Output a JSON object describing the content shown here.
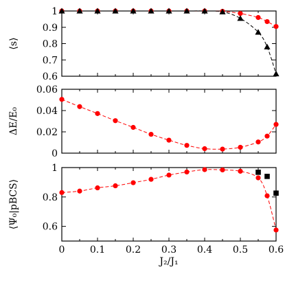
{
  "chart_data": [
    {
      "type": "scatter",
      "ylabel": "⟨s⟩",
      "xlim": [
        0,
        0.6
      ],
      "ylim": [
        0.6,
        1.0
      ],
      "yticks": [
        "0.6",
        "0.7",
        "0.8",
        "0.9",
        "1"
      ],
      "grid": false,
      "series": [
        {
          "marker": "circle",
          "color": "#ff0000",
          "line": "dashed",
          "x": [
            0,
            0.05,
            0.1,
            0.15,
            0.2,
            0.25,
            0.3,
            0.35,
            0.4,
            0.45,
            0.5,
            0.55,
            0.575,
            0.6
          ],
          "y": [
            1.0,
            1.0,
            1.0,
            1.0,
            1.0,
            1.0,
            1.0,
            1.0,
            1.0,
            0.998,
            0.985,
            0.96,
            0.935,
            0.905
          ]
        },
        {
          "marker": "triangle",
          "color": "#000000",
          "line": "dashed",
          "x": [
            0,
            0.05,
            0.1,
            0.15,
            0.2,
            0.25,
            0.3,
            0.35,
            0.4,
            0.45,
            0.5,
            0.55,
            0.575,
            0.6
          ],
          "y": [
            1.0,
            1.0,
            1.0,
            1.0,
            1.0,
            1.0,
            1.0,
            1.0,
            1.0,
            0.995,
            0.955,
            0.87,
            0.78,
            0.615
          ]
        }
      ]
    },
    {
      "type": "scatter",
      "ylabel": "ΔE/E₀",
      "xlim": [
        0,
        0.6
      ],
      "ylim": [
        0,
        0.06
      ],
      "yticks": [
        "0",
        "0.02",
        "0.04",
        "0.06"
      ],
      "grid": false,
      "series": [
        {
          "marker": "circle",
          "color": "#ff0000",
          "line": "dashed",
          "x": [
            0,
            0.05,
            0.1,
            0.15,
            0.2,
            0.25,
            0.3,
            0.35,
            0.4,
            0.45,
            0.5,
            0.55,
            0.575,
            0.6
          ],
          "y": [
            0.0505,
            0.0437,
            0.0372,
            0.0305,
            0.0242,
            0.0177,
            0.0122,
            0.0073,
            0.0042,
            0.0038,
            0.0055,
            0.0105,
            0.016,
            0.027
          ]
        }
      ]
    },
    {
      "type": "scatter",
      "ylabel": "⟨Ψ₀|pBCS⟩",
      "xlabel": "J₂/J₁",
      "xlim": [
        0,
        0.6
      ],
      "ylim": [
        0.5,
        1.0
      ],
      "yticks": [
        "0.6",
        "0.8",
        "1"
      ],
      "xticks": [
        "0",
        "0.1",
        "0.2",
        "0.3",
        "0.4",
        "0.5",
        "0.6"
      ],
      "grid": false,
      "series": [
        {
          "marker": "circle",
          "color": "#ff0000",
          "line": "dashed",
          "x": [
            0,
            0.05,
            0.1,
            0.15,
            0.2,
            0.25,
            0.3,
            0.35,
            0.4,
            0.45,
            0.5,
            0.55,
            0.575,
            0.6
          ],
          "y": [
            0.83,
            0.84,
            0.862,
            0.876,
            0.897,
            0.92,
            0.949,
            0.97,
            0.986,
            0.984,
            0.975,
            0.93,
            0.808,
            0.575
          ]
        },
        {
          "marker": "square",
          "color": "#000000",
          "line": "none",
          "x": [
            0.55,
            0.575,
            0.6
          ],
          "y": [
            0.968,
            0.94,
            0.826
          ]
        }
      ]
    }
  ]
}
